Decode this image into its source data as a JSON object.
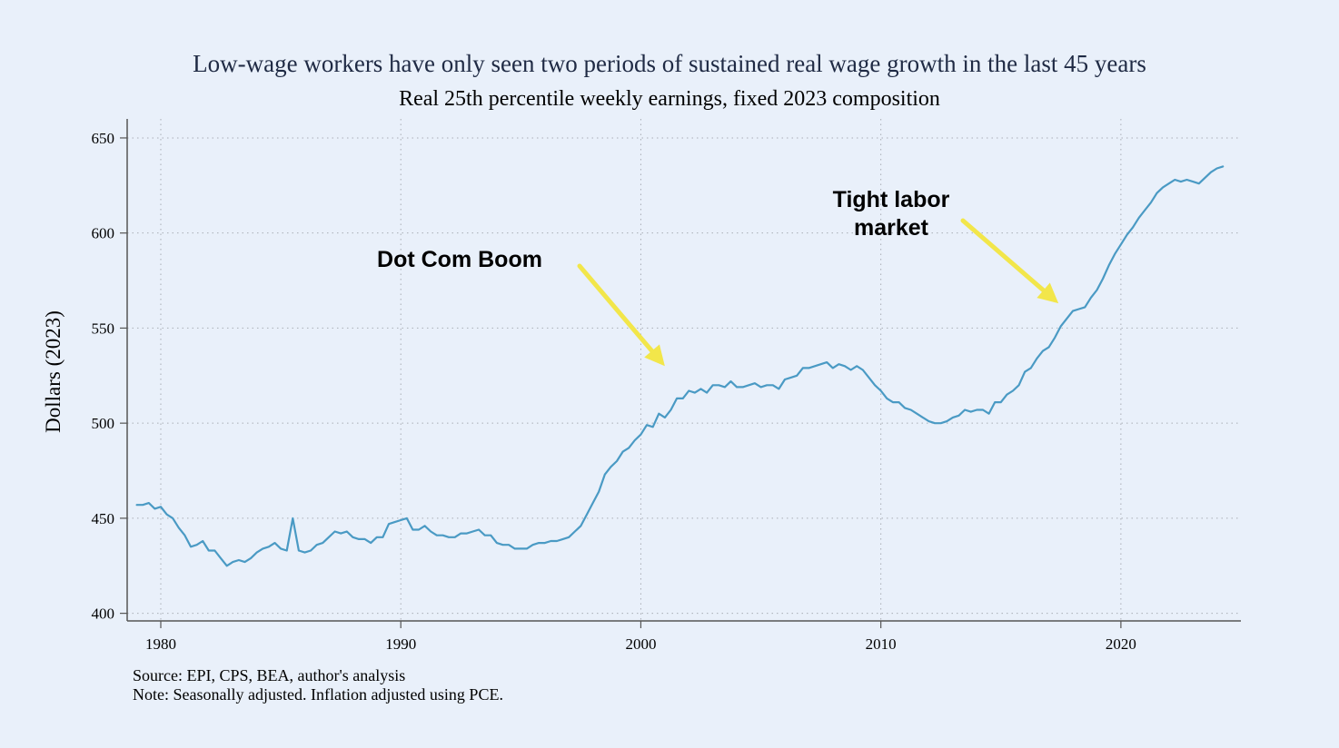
{
  "chart_data": {
    "type": "line",
    "title": "Low-wage workers have only seen two periods of sustained real wage growth in the last 45 years",
    "subtitle": "Real 25th percentile weekly earnings, fixed 2023 composition",
    "ylabel": "Dollars (2023)",
    "xlabel": "",
    "xlim": [
      1978.6,
      2025.0
    ],
    "ylim": [
      396,
      660
    ],
    "grid": true,
    "x_ticks": [
      1980,
      1990,
      2000,
      2010,
      2020
    ],
    "y_ticks": [
      400,
      450,
      500,
      550,
      600,
      650
    ],
    "line_color": "#4a9ac4",
    "series": [
      {
        "points": [
          [
            1979.0,
            457
          ],
          [
            1979.25,
            457
          ],
          [
            1979.5,
            458
          ],
          [
            1979.75,
            455
          ],
          [
            1980.0,
            456
          ],
          [
            1980.25,
            452
          ],
          [
            1980.5,
            450
          ],
          [
            1980.75,
            445
          ],
          [
            1981.0,
            441
          ],
          [
            1981.25,
            435
          ],
          [
            1981.5,
            436
          ],
          [
            1981.75,
            438
          ],
          [
            1982.0,
            433
          ],
          [
            1982.25,
            433
          ],
          [
            1982.5,
            429
          ],
          [
            1982.75,
            425
          ],
          [
            1983.0,
            427
          ],
          [
            1983.25,
            428
          ],
          [
            1983.5,
            427
          ],
          [
            1983.75,
            429
          ],
          [
            1984.0,
            432
          ],
          [
            1984.25,
            434
          ],
          [
            1984.5,
            435
          ],
          [
            1984.75,
            437
          ],
          [
            1985.0,
            434
          ],
          [
            1985.25,
            433
          ],
          [
            1985.5,
            450
          ],
          [
            1985.75,
            433
          ],
          [
            1986.0,
            432
          ],
          [
            1986.25,
            433
          ],
          [
            1986.5,
            436
          ],
          [
            1986.75,
            437
          ],
          [
            1987.0,
            440
          ],
          [
            1987.25,
            443
          ],
          [
            1987.5,
            442
          ],
          [
            1987.75,
            443
          ],
          [
            1988.0,
            440
          ],
          [
            1988.25,
            439
          ],
          [
            1988.5,
            439
          ],
          [
            1988.75,
            437
          ],
          [
            1989.0,
            440
          ],
          [
            1989.25,
            440
          ],
          [
            1989.5,
            447
          ],
          [
            1989.75,
            448
          ],
          [
            1990.0,
            449
          ],
          [
            1990.25,
            450
          ],
          [
            1990.5,
            444
          ],
          [
            1990.75,
            444
          ],
          [
            1991.0,
            446
          ],
          [
            1991.25,
            443
          ],
          [
            1991.5,
            441
          ],
          [
            1991.75,
            441
          ],
          [
            1992.0,
            440
          ],
          [
            1992.25,
            440
          ],
          [
            1992.5,
            442
          ],
          [
            1992.75,
            442
          ],
          [
            1993.0,
            443
          ],
          [
            1993.25,
            444
          ],
          [
            1993.5,
            441
          ],
          [
            1993.75,
            441
          ],
          [
            1994.0,
            437
          ],
          [
            1994.25,
            436
          ],
          [
            1994.5,
            436
          ],
          [
            1994.75,
            434
          ],
          [
            1995.0,
            434
          ],
          [
            1995.25,
            434
          ],
          [
            1995.5,
            436
          ],
          [
            1995.75,
            437
          ],
          [
            1996.0,
            437
          ],
          [
            1996.25,
            438
          ],
          [
            1996.5,
            438
          ],
          [
            1996.75,
            439
          ],
          [
            1997.0,
            440
          ],
          [
            1997.25,
            443
          ],
          [
            1997.5,
            446
          ],
          [
            1997.75,
            452
          ],
          [
            1998.0,
            458
          ],
          [
            1998.25,
            464
          ],
          [
            1998.5,
            473
          ],
          [
            1998.75,
            477
          ],
          [
            1999.0,
            480
          ],
          [
            1999.25,
            485
          ],
          [
            1999.5,
            487
          ],
          [
            1999.75,
            491
          ],
          [
            2000.0,
            494
          ],
          [
            2000.25,
            499
          ],
          [
            2000.5,
            498
          ],
          [
            2000.75,
            505
          ],
          [
            2001.0,
            503
          ],
          [
            2001.25,
            507
          ],
          [
            2001.5,
            513
          ],
          [
            2001.75,
            513
          ],
          [
            2002.0,
            517
          ],
          [
            2002.25,
            516
          ],
          [
            2002.5,
            518
          ],
          [
            2002.75,
            516
          ],
          [
            2003.0,
            520
          ],
          [
            2003.25,
            520
          ],
          [
            2003.5,
            519
          ],
          [
            2003.75,
            522
          ],
          [
            2004.0,
            519
          ],
          [
            2004.25,
            519
          ],
          [
            2004.5,
            520
          ],
          [
            2004.75,
            521
          ],
          [
            2005.0,
            519
          ],
          [
            2005.25,
            520
          ],
          [
            2005.5,
            520
          ],
          [
            2005.75,
            518
          ],
          [
            2006.0,
            523
          ],
          [
            2006.25,
            524
          ],
          [
            2006.5,
            525
          ],
          [
            2006.75,
            529
          ],
          [
            2007.0,
            529
          ],
          [
            2007.25,
            530
          ],
          [
            2007.5,
            531
          ],
          [
            2007.75,
            532
          ],
          [
            2008.0,
            529
          ],
          [
            2008.25,
            531
          ],
          [
            2008.5,
            530
          ],
          [
            2008.75,
            528
          ],
          [
            2009.0,
            530
          ],
          [
            2009.25,
            528
          ],
          [
            2009.5,
            524
          ],
          [
            2009.75,
            520
          ],
          [
            2010.0,
            517
          ],
          [
            2010.25,
            513
          ],
          [
            2010.5,
            511
          ],
          [
            2010.75,
            511
          ],
          [
            2011.0,
            508
          ],
          [
            2011.25,
            507
          ],
          [
            2011.5,
            505
          ],
          [
            2011.75,
            503
          ],
          [
            2012.0,
            501
          ],
          [
            2012.25,
            500
          ],
          [
            2012.5,
            500
          ],
          [
            2012.75,
            501
          ],
          [
            2013.0,
            503
          ],
          [
            2013.25,
            504
          ],
          [
            2013.5,
            507
          ],
          [
            2013.75,
            506
          ],
          [
            2014.0,
            507
          ],
          [
            2014.25,
            507
          ],
          [
            2014.5,
            505
          ],
          [
            2014.75,
            511
          ],
          [
            2015.0,
            511
          ],
          [
            2015.25,
            515
          ],
          [
            2015.5,
            517
          ],
          [
            2015.75,
            520
          ],
          [
            2016.0,
            527
          ],
          [
            2016.25,
            529
          ],
          [
            2016.5,
            534
          ],
          [
            2016.75,
            538
          ],
          [
            2017.0,
            540
          ],
          [
            2017.25,
            545
          ],
          [
            2017.5,
            551
          ],
          [
            2017.75,
            555
          ],
          [
            2018.0,
            559
          ],
          [
            2018.25,
            560
          ],
          [
            2018.5,
            561
          ],
          [
            2018.75,
            566
          ],
          [
            2019.0,
            570
          ],
          [
            2019.25,
            576
          ],
          [
            2019.5,
            583
          ],
          [
            2019.75,
            589
          ],
          [
            2020.0,
            594
          ],
          [
            2020.25,
            599
          ],
          [
            2020.5,
            603
          ],
          [
            2020.75,
            608
          ],
          [
            2021.0,
            612
          ],
          [
            2021.25,
            616
          ],
          [
            2021.5,
            621
          ],
          [
            2021.75,
            624
          ],
          [
            2022.0,
            626
          ],
          [
            2022.25,
            628
          ],
          [
            2022.5,
            627
          ],
          [
            2022.75,
            628
          ],
          [
            2023.0,
            627
          ],
          [
            2023.25,
            626
          ],
          [
            2023.5,
            629
          ],
          [
            2023.75,
            632
          ],
          [
            2024.0,
            634
          ],
          [
            2024.25,
            635
          ]
        ]
      }
    ],
    "annotations": [
      {
        "lines": [
          "Dot Com Boom"
        ],
        "arrow_to": [
          2001.0,
          530
        ]
      },
      {
        "lines": [
          "Tight labor",
          "market"
        ],
        "arrow_to": [
          2017.4,
          563
        ]
      }
    ],
    "arrow_color": "#f2e64a"
  },
  "notes": {
    "source": "Source: EPI, CPS, BEA, author's analysis",
    "note": "Note: Seasonally adjusted. Inflation adjusted using PCE."
  }
}
